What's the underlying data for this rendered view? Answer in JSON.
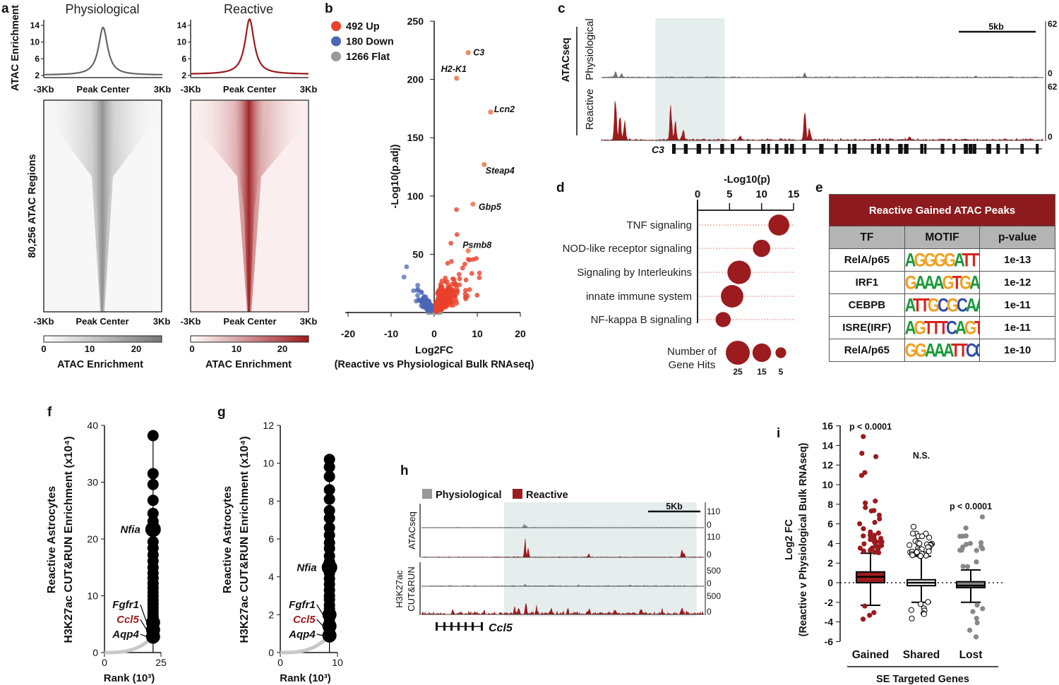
{
  "panel_labels": {
    "a": "a",
    "b": "b",
    "c": "c",
    "d": "d",
    "e": "e",
    "f": "f",
    "g": "g",
    "h": "h",
    "i": "i"
  },
  "colors": {
    "reactive": "#9b1b1e",
    "physiological": "#777777",
    "up": "#e8412c",
    "down": "#4b66b5",
    "flat": "#9a9a9a",
    "shade": "#e6eded"
  },
  "chart_data": [
    {
      "id": "a-profile",
      "type": "line",
      "titles": [
        "Physiological",
        "Reactive"
      ],
      "ylabel": "ATAC Enrichment",
      "yticks": [
        "2",
        "6",
        "10",
        "14"
      ],
      "xticks": [
        "-3Kb",
        "Peak Center",
        "3Kb"
      ],
      "ylim": [
        2,
        14
      ],
      "series": [
        {
          "name": "Physiological",
          "peak": 13.5,
          "baseline": 2.1
        },
        {
          "name": "Reactive",
          "peak": 15.5,
          "baseline": 2.3
        }
      ]
    },
    {
      "id": "a-heatmap",
      "type": "heatmap",
      "ylabel": "80,256 ATAC Regions",
      "xticks": [
        "-3Kb",
        "Peak Center",
        "3Kb"
      ],
      "colorbar": {
        "label": "ATAC Enrichment",
        "ticks": [
          "0",
          "10",
          "20"
        ],
        "range": [
          0,
          25
        ]
      }
    },
    {
      "id": "b-volcano",
      "type": "scatter",
      "xlabel": "Log2FC",
      "xlabel2": "(Reactive vs Physiological Bulk RNAseq)",
      "ylabel": "-Log10(p.adj)",
      "xlim": [
        -20,
        20
      ],
      "ylim": [
        0,
        250
      ],
      "xticks": [
        "-20",
        "-10",
        "0",
        "10",
        "20"
      ],
      "yticks": [
        "50",
        "100",
        "150",
        "200",
        "250"
      ],
      "legend": [
        {
          "label": "492 Up",
          "count": 492,
          "color": "#e8412c"
        },
        {
          "label": "180 Down",
          "count": 180,
          "color": "#4b66b5"
        },
        {
          "label": "1266 Flat",
          "count": 1266,
          "color": "#9a9a9a"
        }
      ],
      "labeled_points": [
        {
          "gene": "C3",
          "x": 7.9,
          "y": 223
        },
        {
          "gene": "H2-K1",
          "x": 5.2,
          "y": 201
        },
        {
          "gene": "Lcn2",
          "x": 13.1,
          "y": 172
        },
        {
          "gene": "Steap4",
          "x": 11.6,
          "y": 127
        },
        {
          "gene": "Gbp5",
          "x": 9.0,
          "y": 93
        },
        {
          "gene": "Psmb8",
          "x": 7.9,
          "y": 53
        }
      ]
    },
    {
      "id": "c-tracks",
      "type": "area",
      "ylabel": "ATACseq",
      "tracks": [
        {
          "name": "Physiological",
          "max": "62",
          "min": "0",
          "peaks": [
            [
              0.9,
              8
            ],
            [
              1.3,
              5
            ],
            [
              13.2,
              6
            ],
            [
              24.3,
              2
            ]
          ]
        },
        {
          "name": "Reactive",
          "max": "62",
          "min": "0",
          "peaks": [
            [
              0.9,
              55
            ],
            [
              1.2,
              30
            ],
            [
              1.5,
              22
            ],
            [
              4.5,
              38
            ],
            [
              4.8,
              20
            ],
            [
              5.3,
              12
            ],
            [
              13.2,
              38
            ],
            [
              13.5,
              15
            ],
            [
              9.0,
              5
            ],
            [
              20,
              4
            ]
          ]
        }
      ],
      "scalebar": "5kb",
      "span_kb": 28.7,
      "highlight_kb": [
        3.5,
        8.0
      ],
      "gene": "C3"
    },
    {
      "id": "d-dotplot",
      "type": "scatter",
      "xlabel": "-Log10(p)",
      "xticks": [
        "0",
        "5",
        "10",
        "15"
      ],
      "xlim": [
        0,
        15
      ],
      "terms": [
        {
          "label": "TNF signaling",
          "p": 12.7,
          "hits": 19
        },
        {
          "label": "NOD-like receptor signaling",
          "p": 10.0,
          "hits": 13
        },
        {
          "label": "Signaling by Interleukins",
          "p": 6.5,
          "hits": 24
        },
        {
          "label": "innate immune system",
          "p": 5.4,
          "hits": 22
        },
        {
          "label": "NF-kappa B signaling",
          "p": 4.0,
          "hits": 10
        }
      ],
      "size_legend": {
        "title1": "Number of",
        "title2": "Gene Hits",
        "values": [
          25,
          15,
          5
        ],
        "labels": [
          "25",
          "15",
          "5"
        ]
      }
    },
    {
      "id": "e-table",
      "type": "table",
      "title": "Reactive Gained ATAC Peaks",
      "columns": [
        "TF",
        "MOTIF",
        "p-value"
      ],
      "rows": [
        {
          "tf": "RelA/p65",
          "motif": "AGGGGATTTCCC",
          "p": "1e-13"
        },
        {
          "tf": "IRF1",
          "motif": "GAAAGTGAAAGT",
          "p": "1e-12"
        },
        {
          "tf": "CEBPB",
          "motif": "ATTGCGCAAC",
          "p": "1e-11"
        },
        {
          "tf": "ISRE(IRF)",
          "motif": "AGTTTCAGTTTC",
          "p": "1e-11"
        },
        {
          "tf": "RelA/p65",
          "motif": "GGAAATTCCC",
          "p": "1e-10"
        }
      ]
    },
    {
      "id": "f-rank",
      "type": "scatter",
      "ylabel1": "Reactive Astrocytes",
      "ylabel2": "H3K27ac CUT&RUN Enrichment (x10⁴)",
      "xlabel": "Rank (10³)",
      "xlim": [
        0,
        25
      ],
      "ylim": [
        0,
        40
      ],
      "xticks": [
        "0",
        "25"
      ],
      "yticks": [
        "0",
        "10",
        "20",
        "30",
        "40"
      ],
      "top_values": [
        38.2,
        31.5,
        29.6,
        26.8,
        24.5,
        23.1,
        21.7,
        19.5,
        18.4,
        17.2,
        16.1,
        15.0,
        14.0,
        13.1,
        12.2,
        11.4,
        10.6,
        9.9,
        9.2,
        8.5,
        7.9,
        7.3,
        6.8,
        6.3,
        5.8,
        5.3,
        4.9,
        4.4,
        4.0,
        3.6,
        3.2,
        2.8
      ],
      "genes": [
        {
          "name": "Nfia",
          "value": 21.7,
          "highlight": false
        },
        {
          "name": "Fgfr1",
          "value": 5.3,
          "highlight": false
        },
        {
          "name": "Ccl5",
          "value": 4.0,
          "highlight": true
        },
        {
          "name": "Aqp4",
          "value": 2.8,
          "highlight": false
        }
      ]
    },
    {
      "id": "g-rank",
      "type": "scatter",
      "ylabel1": "Reactive Astrocytes",
      "ylabel2": "H3K27ac CUT&RUN Enrichment (x10⁴)",
      "xlabel": "Rank (10³)",
      "xlim": [
        0,
        10
      ],
      "ylim": [
        0,
        12
      ],
      "xticks": [
        "0",
        "10"
      ],
      "yticks": [
        "0",
        "2",
        "4",
        "6",
        "8",
        "10",
        "12"
      ],
      "top_values": [
        10.2,
        9.8,
        9.3,
        8.6,
        8.1,
        7.5,
        7.1,
        6.6,
        6.2,
        5.8,
        5.5,
        5.1,
        4.8,
        4.5,
        4.2,
        3.9,
        3.6,
        3.3,
        3.0,
        2.8,
        2.5,
        2.3,
        2.0,
        1.8,
        1.6,
        1.4,
        1.2,
        1.0,
        0.9
      ],
      "genes": [
        {
          "name": "Nfia",
          "value": 4.5,
          "highlight": false
        },
        {
          "name": "Fgfr1",
          "value": 2.0,
          "highlight": false
        },
        {
          "name": "Ccl5",
          "value": 1.4,
          "highlight": true
        },
        {
          "name": "Aqp4",
          "value": 0.9,
          "highlight": false
        }
      ]
    },
    {
      "id": "h-tracks",
      "type": "area",
      "legend": [
        "Physiological",
        "Reactive"
      ],
      "group_labels": [
        "ATACseq",
        "H3K27ac",
        "CUT&RUN"
      ],
      "scalebar": "5Kb",
      "span_kb": 27,
      "highlight_kb": [
        7.9,
        26.3
      ],
      "gene": "Ccl5",
      "tracks": [
        {
          "name": "ATAC Physiological",
          "max": "110",
          "min": "0",
          "noise": 2,
          "peaks": [
            [
              9.8,
              20
            ],
            [
              10.0,
              12
            ]
          ]
        },
        {
          "name": "ATAC Reactive",
          "max": "110",
          "min": "0",
          "noise": 3,
          "peaks": [
            [
              9.9,
              80
            ],
            [
              10.2,
              40
            ],
            [
              16.0,
              18
            ],
            [
              24.9,
              40
            ],
            [
              25.1,
              20
            ]
          ]
        },
        {
          "name": "H3K27ac Physiological",
          "max": "500",
          "min": "0",
          "noise": 25,
          "peaks": [
            [
              9.9,
              60
            ],
            [
              15,
              30
            ],
            [
              20,
              30
            ]
          ]
        },
        {
          "name": "H3K27ac Reactive",
          "max": "500",
          "min": "0",
          "noise": 70,
          "peaks": [
            [
              8.9,
              160
            ],
            [
              9.3,
              150
            ],
            [
              10.0,
              260
            ],
            [
              11.0,
              140
            ],
            [
              12.4,
              130
            ],
            [
              14,
              120
            ],
            [
              16,
              110
            ],
            [
              18.5,
              100
            ],
            [
              21,
              110
            ],
            [
              23,
              90
            ],
            [
              24.9,
              150
            ],
            [
              3,
              60
            ],
            [
              6,
              60
            ]
          ]
        }
      ]
    },
    {
      "id": "i-box",
      "type": "box",
      "ylabel1": "Log2 FC",
      "ylabel2": "(Reactive v Physiological Bulk RNAseq)",
      "ylim": [
        -6,
        16
      ],
      "yticks": [
        "-6",
        "-4",
        "-2",
        "0",
        "2",
        "4",
        "6",
        "8",
        "10",
        "12",
        "14",
        "16"
      ],
      "group_title": "SE Targeted Genes",
      "groups": [
        {
          "name": "Gained",
          "p": "p < 0.0001",
          "q1": 0.0,
          "median": 0.6,
          "q3": 1.1,
          "whisker_low": -2.3,
          "whisker_high": 3.0,
          "outliers": [
            14.8,
            13.1,
            12.8,
            11.1,
            10.9,
            8.3,
            8.0,
            7.6,
            7.4,
            7.2,
            6.9,
            6.6,
            6.2,
            5.9,
            5.5,
            5.3,
            5.0,
            4.9,
            4.7,
            4.6,
            4.5,
            4.3,
            4.1,
            3.9,
            3.7,
            3.5,
            3.4,
            3.2,
            -2.5,
            -2.9,
            -3.2,
            -3.6
          ],
          "color": "#9b1b1e"
        },
        {
          "name": "Shared",
          "p": "N.S.",
          "q1": -0.3,
          "median": 0.0,
          "q3": 0.3,
          "whisker_low": -2.0,
          "whisker_high": 2.7,
          "outliers": [
            5.8,
            4.9,
            4.6,
            4.1,
            3.9,
            3.7,
            3.5,
            3.3,
            3.1,
            3.0,
            2.9,
            2.8,
            -2.1,
            -2.3,
            -2.5,
            -2.7,
            -2.9,
            -3.1,
            -3.3,
            -3.6
          ],
          "color": "#ffffff"
        },
        {
          "name": "Lost",
          "p": "p < 0.0001",
          "q1": -0.5,
          "median": -0.3,
          "q3": 0.1,
          "whisker_low": -2.0,
          "whisker_high": 1.3,
          "outliers": [
            6.6,
            5.5,
            4.7,
            4.0,
            3.6,
            3.2,
            2.0,
            1.8,
            1.6,
            -2.2,
            -2.6,
            -3.0,
            -3.5,
            -4.1,
            -4.8,
            -5.6
          ],
          "color": "#888888"
        }
      ]
    }
  ]
}
